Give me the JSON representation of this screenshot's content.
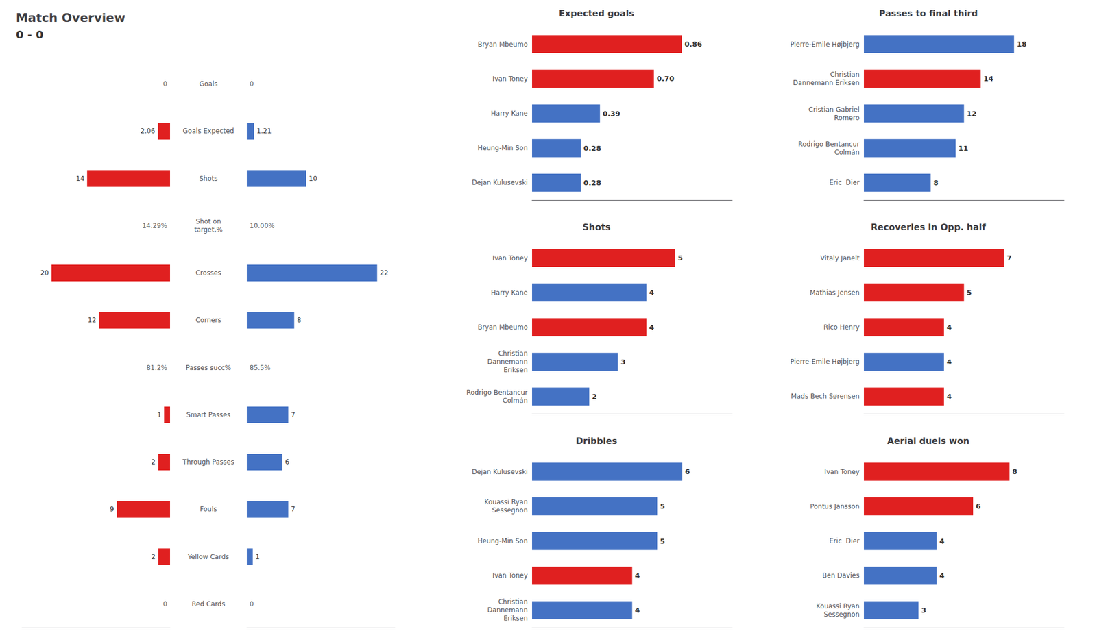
{
  "chart_data": [
    {
      "type": "bar",
      "orientation": "horizontal",
      "title": "Match Overview",
      "subtitle": "0 - 0",
      "categories": [
        "Goals",
        "Goals Expected",
        "Shots",
        "Shot on\ntarget,%",
        "Crosses",
        "Corners",
        "Passes succ%",
        "Smart Passes",
        "Through Passes",
        "Fouls",
        "Yellow Cards",
        "Red Cards"
      ],
      "series": [
        {
          "color": "#E02020",
          "values": [
            null,
            2.06,
            14,
            null,
            20,
            12,
            null,
            1,
            2,
            9,
            2,
            null
          ],
          "value_labels": [
            "0",
            "2.06",
            "14",
            "14.29%",
            "20",
            "12",
            "81.2%",
            "1",
            "2",
            "9",
            "2",
            "0"
          ]
        },
        {
          "color": "#4472C4",
          "values": [
            null,
            1.21,
            10,
            null,
            22,
            8,
            null,
            7,
            6,
            7,
            1,
            null
          ],
          "value_labels": [
            "0",
            "1.21",
            "10",
            "10.00%",
            "22",
            "8",
            "85.5%",
            "7",
            "6",
            "7",
            "1",
            "0"
          ]
        }
      ],
      "xlim": [
        0,
        25
      ],
      "data_labels": true,
      "tick_labels": "y",
      "grid": false
    },
    {
      "type": "bar",
      "orientation": "horizontal",
      "title": "Expected goals",
      "categories": [
        "Bryan Mbeumo",
        "Ivan Toney",
        "Harry Kane",
        "Heung-Min Son",
        "Dejan Kulusevski"
      ],
      "values": [
        0.86,
        0.7,
        0.39,
        0.28,
        0.28
      ],
      "value_labels": [
        "0.86",
        "0.70",
        "0.39",
        "0.28",
        "0.28"
      ],
      "colors": [
        "#E02020",
        "#E02020",
        "#4472C4",
        "#4472C4",
        "#4472C4"
      ],
      "xlim": [
        0,
        1.15
      ],
      "data_labels": true,
      "tick_labels": "y",
      "grid": false
    },
    {
      "type": "bar",
      "orientation": "horizontal",
      "title": "Shots",
      "categories": [
        "Ivan Toney",
        "Harry Kane",
        "Bryan Mbeumo",
        "Christian\nDannemann\nEriksen",
        "Rodrigo Bentancur\nColmán"
      ],
      "values": [
        5,
        4,
        4,
        3,
        2
      ],
      "colors": [
        "#E02020",
        "#4472C4",
        "#E02020",
        "#4472C4",
        "#4472C4"
      ],
      "xlim": [
        0,
        7
      ],
      "data_labels": true,
      "tick_labels": "y",
      "grid": false
    },
    {
      "type": "bar",
      "orientation": "horizontal",
      "title": "Dribbles",
      "categories": [
        "Dejan Kulusevski",
        "Kouassi Ryan\nSessegnon",
        "Heung-Min Son",
        "Ivan Toney",
        "Christian\nDannemann\nEriksen"
      ],
      "values": [
        6,
        5,
        5,
        4,
        4
      ],
      "colors": [
        "#4472C4",
        "#4472C4",
        "#4472C4",
        "#E02020",
        "#4472C4"
      ],
      "xlim": [
        0,
        8
      ],
      "data_labels": true,
      "tick_labels": "y",
      "grid": false
    },
    {
      "type": "bar",
      "orientation": "horizontal",
      "title": "Passes to final third",
      "categories": [
        "Pierre-Emile Højbjerg",
        "Christian\nDannemann Eriksen",
        "Cristian Gabriel\nRomero",
        "Rodrigo Bentancur\nColmán",
        "Eric  Dier"
      ],
      "values": [
        18,
        14,
        12,
        11,
        8
      ],
      "colors": [
        "#4472C4",
        "#E02020",
        "#4472C4",
        "#4472C4",
        "#4472C4"
      ],
      "xlim": [
        0,
        24
      ],
      "data_labels": true,
      "tick_labels": "y",
      "grid": false
    },
    {
      "type": "bar",
      "orientation": "horizontal",
      "title": "Recoveries in Opp. half",
      "categories": [
        "Vitaly Janelt",
        "Mathias Jensen",
        "Rico Henry",
        "Pierre-Emile Højbjerg",
        "Mads Bech Sørensen"
      ],
      "values": [
        7,
        5,
        4,
        4,
        4
      ],
      "colors": [
        "#E02020",
        "#E02020",
        "#E02020",
        "#4472C4",
        "#E02020"
      ],
      "xlim": [
        0,
        10
      ],
      "data_labels": true,
      "tick_labels": "y",
      "grid": false
    },
    {
      "type": "bar",
      "orientation": "horizontal",
      "title": "Aerial duels won",
      "categories": [
        "Ivan Toney",
        "Pontus Jansson",
        "Eric  Dier",
        "Ben Davies",
        "Kouassi Ryan\nSessegnon"
      ],
      "values": [
        8,
        6,
        4,
        4,
        3
      ],
      "colors": [
        "#E02020",
        "#E02020",
        "#4472C4",
        "#4472C4",
        "#4472C4"
      ],
      "xlim": [
        0,
        11
      ],
      "data_labels": true,
      "tick_labels": "y",
      "grid": false
    }
  ]
}
